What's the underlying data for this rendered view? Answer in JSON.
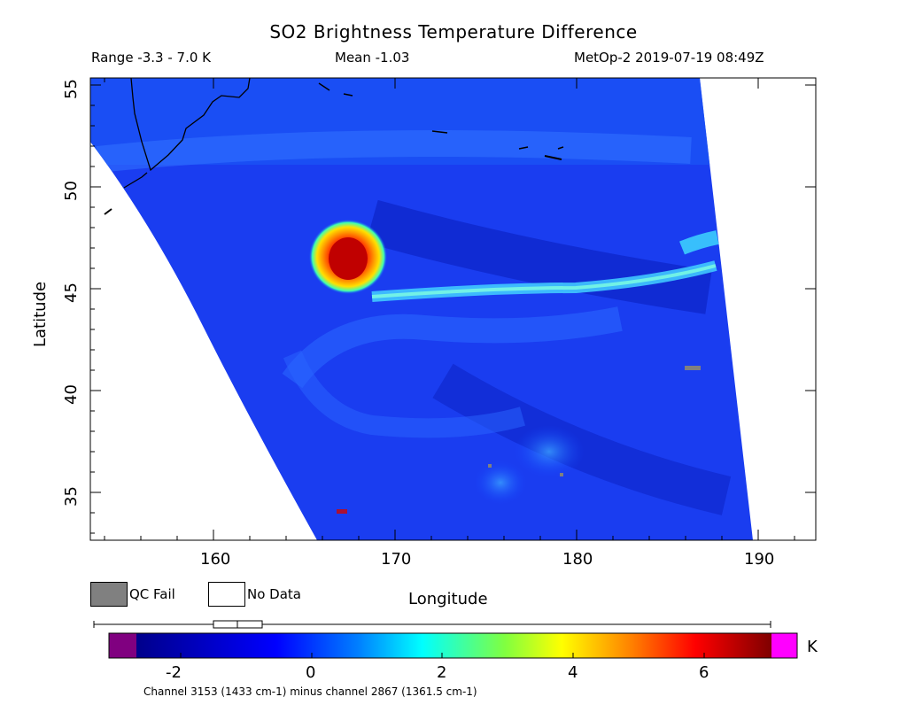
{
  "header": {
    "title": "SO2 Brightness Temperature Difference",
    "range": "Range -3.3 - 7.0 K",
    "mean": "Mean -1.03",
    "satellite_time": "MetOp-2 2019-07-19 08:49Z"
  },
  "axes": {
    "xlabel": "Longitude",
    "ylabel": "Latitude",
    "x_ticks": [
      "160",
      "170",
      "180",
      "190"
    ],
    "y_ticks": [
      "55",
      "50",
      "45",
      "40",
      "35"
    ],
    "xlim": [
      153.5,
      193.5
    ],
    "ylim": [
      32.5,
      55.2
    ]
  },
  "legend": {
    "qc_fail": "QC Fail",
    "no_data": "No Data",
    "qc_fail_color": "#808080",
    "no_data_color": "#ffffff"
  },
  "colorbar": {
    "units": "K",
    "ticks": [
      "-2",
      "0",
      "2",
      "4",
      "6"
    ],
    "range": [
      -3.3,
      7.0
    ],
    "under_color": "#800080",
    "over_color": "#ff00ff",
    "caption": "Channel 3153 (1433 cm-1) minus channel 2867 (1361.5 cm-1)"
  },
  "map_data": {
    "background_value_K": -1.03,
    "features": [
      {
        "name": "SO2 plume core",
        "lon": 167.5,
        "lat": 46.8,
        "value_K": 6.5
      },
      {
        "name": "SO2 plume filament",
        "lon_from": 168.5,
        "lon_to": 188.0,
        "lat_from": 45.3,
        "lat_to": 47.0,
        "value_K": 1.0
      }
    ]
  }
}
